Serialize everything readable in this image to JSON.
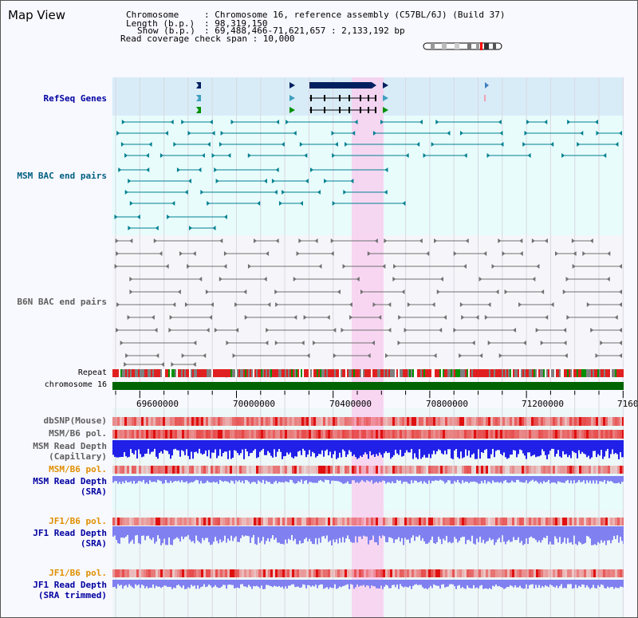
{
  "header": {
    "title": "Map View",
    "chromosome_key": "Chromosome",
    "chromosome_value": ": Chromosome 16, reference assembly (C57BL/6J) (Build 37)",
    "length_key": "Length (b.p.)",
    "length_value": ": 98,319,150",
    "show_key": "Show (b.p.)",
    "show_value": ": 69,488,466-71,621,657 : 2,133,192 bp",
    "coverage_line": "Read coverage check span : 10,000"
  },
  "tracks": {
    "refseq": "RefSeq Genes",
    "msm_bac": "MSM BAC end pairs",
    "b6n_bac": "B6N BAC end pairs",
    "repeat": "Repeat",
    "chromosome": "chromosome 16",
    "dbsnp": "dbSNP(Mouse)",
    "msm_b6_pol": "MSM/B6 pol.",
    "msm_read_cap_1": "MSM Read Depth",
    "msm_read_cap_2": "(Capillary)",
    "msm_b6_pol2": "MSM/B6 pol.",
    "msm_read_sra_1": "MSM Read Depth",
    "msm_read_sra_2": "(SRA)",
    "jf1_b6_pol": "JF1/B6 pol.",
    "jf1_read_sra_1": "JF1 Read Depth",
    "jf1_read_sra_2": "(SRA)",
    "jf1_b6_pol2": "JF1/B6 pol.",
    "jf1_read_trim_1": "JF1 Read Depth",
    "jf1_read_trim_2": "(SRA trimmed)"
  },
  "axis": {
    "ticks": [
      "69600000",
      "70000000",
      "70400000",
      "70800000",
      "71200000",
      "7160"
    ]
  },
  "colors": {
    "highlight": "#f8d0f0",
    "refseq_bg": "#d8ecf8",
    "msm_bg": "#e8fcfc",
    "snp": "#f07070",
    "depth_cap": "#2020e8",
    "depth_sra": "#8080f0",
    "chromosome": "#006400",
    "msm_label": "#006080",
    "b6n_label": "#606060",
    "blue_label": "#0000a0",
    "orange_label": "#e09000"
  }
}
